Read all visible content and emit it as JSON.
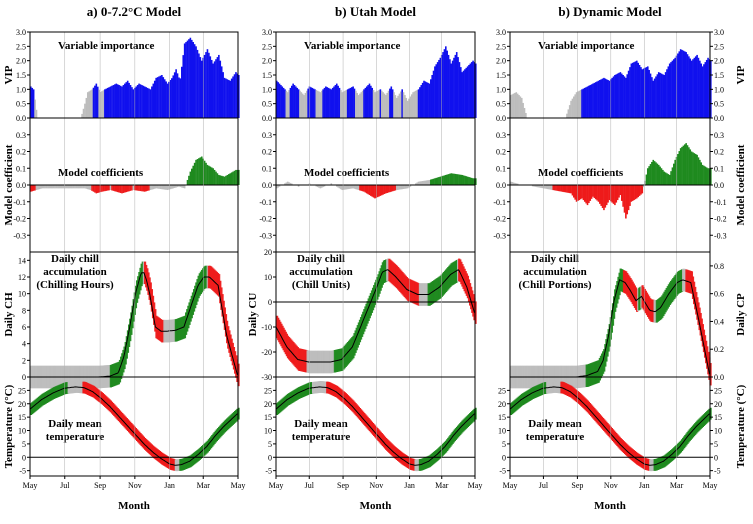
{
  "colors": {
    "vip_important": "#1010ee",
    "vip_other": "#bdbdbd",
    "positive": "#1f8a1f",
    "negative": "#ee1a1a",
    "neutral": "#bdbdbd",
    "mean_line": "#000000"
  },
  "chart_data": [
    {
      "type": "figure-grid",
      "panel_titles": [
        "a) 0-7.2°C Model",
        "b) Utah Model",
        "b) Dynamic Model"
      ],
      "x_axis": {
        "label": "Month",
        "tick_labels": [
          "May",
          "Jul",
          "Sep",
          "Nov",
          "Jan",
          "Mar",
          "May"
        ]
      },
      "row_labels": {
        "vip_left": "VIP",
        "vip_right": "VIP",
        "coef_left": "Model coefficient",
        "coef_right": "Model coefficient",
        "temp_left": "Temperature (°C)",
        "temp_right": "Temperature (°C)"
      }
    },
    {
      "type": "bar",
      "row": "vip",
      "title": "Variable importance",
      "ylim": [
        0,
        3.0
      ],
      "yticks": [
        "0.0",
        "0.5",
        "1.0",
        "1.5",
        "2.0",
        "2.5",
        "3.0"
      ],
      "series": [
        {
          "model": "0-7.2",
          "days": [
            0,
            5,
            12,
            20,
            40,
            60,
            75,
            88,
            95,
            100,
            108,
            115,
            122,
            130,
            140,
            150,
            160,
            170,
            180,
            190,
            200,
            210,
            220,
            230,
            240,
            248,
            255,
            262,
            270,
            280,
            290,
            300,
            310,
            320,
            330,
            340,
            350,
            360,
            365
          ],
          "values": [
            1.1,
            1.0,
            0,
            0,
            0,
            0,
            0,
            0,
            0.5,
            0.9,
            1.0,
            1.2,
            0.9,
            1.0,
            1.1,
            1.2,
            1.1,
            1.3,
            1.0,
            1.2,
            1.1,
            1.0,
            1.4,
            1.5,
            1.2,
            1.4,
            1.7,
            1.3,
            2.6,
            2.8,
            2.5,
            2.0,
            2.4,
            1.9,
            2.2,
            1.4,
            1.3,
            1.6,
            1.5
          ]
        },
        {
          "model": "Utah",
          "days": [
            0,
            10,
            20,
            30,
            40,
            50,
            60,
            70,
            80,
            90,
            100,
            110,
            120,
            130,
            140,
            150,
            160,
            170,
            180,
            190,
            200,
            210,
            220,
            230,
            240,
            250,
            260,
            270,
            280,
            290,
            300,
            310,
            320,
            330,
            340,
            350,
            360,
            365
          ],
          "values": [
            1.3,
            1.1,
            0.9,
            1.2,
            1.0,
            0.8,
            1.1,
            1.0,
            0.9,
            1.1,
            1.0,
            1.2,
            0.9,
            1.0,
            1.1,
            0.8,
            1.0,
            1.2,
            0.9,
            1.0,
            0.8,
            1.1,
            0.7,
            1.0,
            0.6,
            0.9,
            1.0,
            1.3,
            1.2,
            1.8,
            2.1,
            2.5,
            1.9,
            2.3,
            1.6,
            1.8,
            2.0,
            1.9
          ]
        },
        {
          "model": "Dynamic",
          "days": [
            0,
            10,
            20,
            30,
            40,
            50,
            60,
            70,
            80,
            90,
            100,
            110,
            120,
            130,
            140,
            150,
            160,
            170,
            180,
            190,
            200,
            210,
            220,
            230,
            240,
            250,
            260,
            270,
            280,
            290,
            300,
            310,
            320,
            330,
            340,
            350,
            360,
            365
          ],
          "values": [
            0.8,
            0.9,
            0.7,
            0,
            0,
            0,
            0,
            0,
            0,
            0,
            0,
            0.6,
            0.9,
            1.0,
            1.1,
            1.2,
            1.3,
            1.4,
            1.3,
            1.5,
            1.6,
            1.4,
            1.9,
            2.0,
            1.7,
            1.8,
            1.3,
            1.6,
            1.5,
            1.9,
            2.1,
            2.4,
            2.3,
            2.0,
            2.2,
            1.8,
            2.1,
            2.0
          ]
        }
      ]
    },
    {
      "type": "bar",
      "row": "coefficients",
      "title": "Model coefficients",
      "ylim": [
        -0.4,
        0.4
      ],
      "yticks": [
        "-0.3",
        "-0.2",
        "-0.1",
        "0.0",
        "0.1",
        "0.2",
        "0.3"
      ],
      "series": [
        {
          "model": "0-7.2",
          "days": [
            0,
            10,
            20,
            95,
            105,
            115,
            125,
            140,
            160,
            180,
            200,
            220,
            240,
            250,
            260,
            270,
            280,
            290,
            300,
            310,
            320,
            330,
            340,
            350,
            360
          ],
          "values": [
            -0.04,
            -0.03,
            -0.02,
            -0.02,
            -0.03,
            -0.05,
            -0.04,
            -0.03,
            -0.05,
            -0.03,
            -0.04,
            -0.02,
            -0.03,
            -0.02,
            -0.01,
            -0.02,
            0.08,
            0.15,
            0.17,
            0.12,
            0.1,
            0.06,
            0.05,
            0.07,
            0.09
          ]
        },
        {
          "model": "Utah",
          "days": [
            0,
            20,
            40,
            60,
            80,
            100,
            120,
            140,
            160,
            180,
            200,
            220,
            240,
            260,
            280,
            300,
            320,
            340,
            360
          ],
          "values": [
            -0.02,
            0.02,
            -0.01,
            0.01,
            -0.02,
            0.01,
            -0.03,
            -0.02,
            -0.04,
            -0.08,
            -0.05,
            -0.03,
            -0.02,
            0.02,
            0.03,
            0.05,
            0.07,
            0.06,
            0.04
          ]
        },
        {
          "model": "Dynamic",
          "days": [
            0,
            10,
            110,
            120,
            130,
            140,
            150,
            160,
            170,
            180,
            190,
            200,
            210,
            220,
            230,
            240,
            250,
            260,
            270,
            280,
            290,
            300,
            310,
            320,
            330,
            340,
            350,
            360
          ],
          "values": [
            0.02,
            0.01,
            -0.05,
            -0.1,
            -0.08,
            -0.12,
            -0.07,
            -0.1,
            -0.15,
            -0.09,
            -0.12,
            -0.06,
            -0.2,
            -0.1,
            -0.08,
            -0.05,
            0.1,
            0.15,
            0.12,
            0.08,
            0.06,
            0.15,
            0.22,
            0.25,
            0.2,
            0.18,
            0.12,
            0.1
          ]
        }
      ]
    },
    {
      "type": "line",
      "row": "daily_chill",
      "series": [
        {
          "model": "0-7.2",
          "annotation": [
            "Daily chill",
            "accumulation",
            "(Chilling Hours)"
          ],
          "ylabel": "Daily CH",
          "ylim": [
            0,
            15
          ],
          "yticks": [
            "0",
            "2",
            "4",
            "6",
            "8",
            "10",
            "12",
            "14"
          ],
          "days": [
            0,
            120,
            140,
            155,
            165,
            175,
            185,
            195,
            200,
            205,
            210,
            220,
            230,
            240,
            255,
            270,
            280,
            295,
            305,
            315,
            330,
            345,
            365
          ],
          "values": [
            0,
            0,
            0.1,
            0.5,
            2.5,
            6,
            10,
            12.5,
            12.5,
            11.5,
            10,
            6,
            5.5,
            5.5,
            5.6,
            6,
            8,
            11,
            12,
            12,
            11,
            5,
            0
          ]
        },
        {
          "model": "Utah",
          "annotation": [
            "Daily chill",
            "accumulation",
            "(Chill Units)"
          ],
          "ylabel": "Daily CU",
          "ylim": [
            -30,
            20
          ],
          "yticks": [
            "-30",
            "-20",
            "-10",
            "0",
            "10",
            "20"
          ],
          "days": [
            0,
            20,
            40,
            60,
            80,
            100,
            120,
            140,
            155,
            170,
            185,
            195,
            205,
            220,
            240,
            260,
            280,
            300,
            320,
            335,
            350,
            365
          ],
          "values": [
            -10,
            -18,
            -23,
            -24,
            -24,
            -24,
            -23,
            -18,
            -10,
            -2,
            6,
            12,
            13,
            10,
            5,
            3,
            3,
            6,
            11,
            13,
            6,
            -5
          ]
        },
        {
          "model": "Dynamic",
          "annotation": [
            "Daily chill",
            "accumulation",
            "(Chill Portions)"
          ],
          "ylabel": "Daily CP",
          "ylim": [
            0,
            0.9
          ],
          "yticks": [
            "0.0",
            "0.2",
            "0.4",
            "0.6",
            "0.8"
          ],
          "days": [
            0,
            120,
            140,
            160,
            170,
            180,
            190,
            200,
            210,
            220,
            230,
            240,
            255,
            265,
            275,
            290,
            305,
            315,
            330,
            345,
            365
          ],
          "values": [
            0,
            0,
            0.01,
            0.04,
            0.12,
            0.3,
            0.55,
            0.7,
            0.68,
            0.62,
            0.55,
            0.58,
            0.48,
            0.47,
            0.5,
            0.6,
            0.68,
            0.7,
            0.68,
            0.4,
            0
          ]
        }
      ]
    },
    {
      "type": "line",
      "row": "temperature",
      "annotation": [
        "Daily mean",
        "temperature"
      ],
      "ylim": [
        -7,
        30
      ],
      "yticks": [
        "-5",
        "0",
        "5",
        "10",
        "15",
        "20",
        "25"
      ],
      "days": [
        0,
        20,
        40,
        60,
        80,
        95,
        110,
        125,
        140,
        155,
        170,
        185,
        200,
        215,
        230,
        245,
        255,
        265,
        280,
        295,
        310,
        325,
        340,
        355,
        365
      ],
      "values": [
        18,
        21.5,
        24,
        25.8,
        26.3,
        26,
        24.5,
        22,
        19,
        15.5,
        12,
        8.5,
        5,
        2,
        -0.5,
        -2.5,
        -3,
        -2.8,
        -1.5,
        1,
        4,
        8,
        11.5,
        14.5,
        16.5
      ]
    }
  ]
}
